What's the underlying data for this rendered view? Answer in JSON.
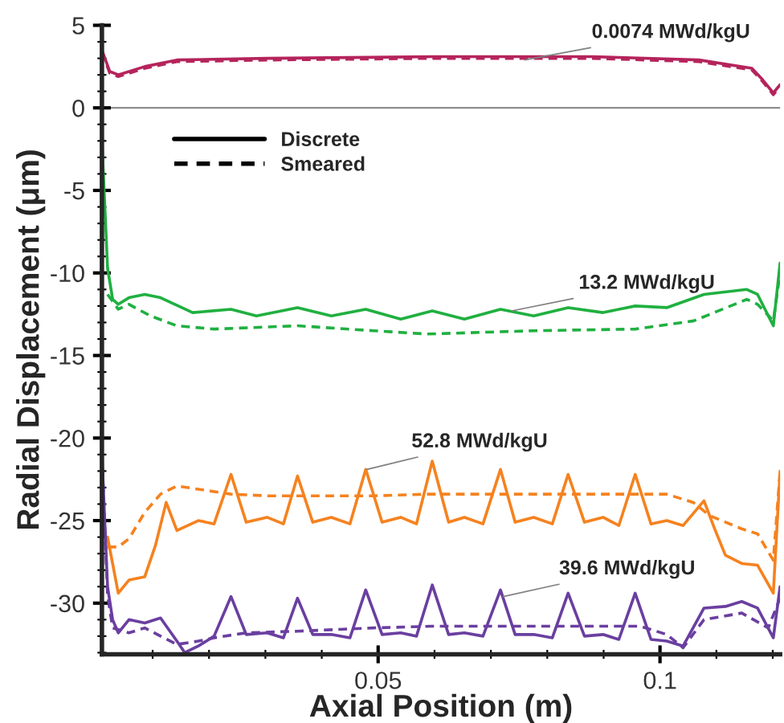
{
  "chart_data": {
    "type": "line",
    "xlabel": "Axial Position (m)",
    "ylabel": "Radial Displacement (μm)",
    "xlim": [
      0.001,
      0.1213
    ],
    "ylim": [
      -33.1,
      5
    ],
    "xticks": [
      {
        "value": 0.01,
        "label": null
      },
      {
        "value": 0.02,
        "label": null
      },
      {
        "value": 0.03,
        "label": null
      },
      {
        "value": 0.04,
        "label": null
      },
      {
        "value": 0.05,
        "label": "0.05"
      },
      {
        "value": 0.06,
        "label": null
      },
      {
        "value": 0.07,
        "label": null
      },
      {
        "value": 0.08,
        "label": null
      },
      {
        "value": 0.09,
        "label": null
      },
      {
        "value": 0.1,
        "label": "0.1"
      },
      {
        "value": 0.11,
        "label": null
      },
      {
        "value": 0.12,
        "label": null
      }
    ],
    "yticks": [
      {
        "value": -33,
        "label": null
      },
      {
        "value": -32,
        "label": null
      },
      {
        "value": -31,
        "label": null
      },
      -30,
      {
        "value": -29,
        "label": null
      },
      {
        "value": -28,
        "label": null
      },
      {
        "value": -27,
        "label": null
      },
      {
        "value": -26,
        "label": null
      },
      -25,
      {
        "value": -24,
        "label": null
      },
      {
        "value": -23,
        "label": null
      },
      {
        "value": -22,
        "label": null
      },
      {
        "value": -21,
        "label": null
      },
      -20,
      {
        "value": -19,
        "label": null
      },
      {
        "value": -18,
        "label": null
      },
      {
        "value": -17,
        "label": null
      },
      {
        "value": -16,
        "label": null
      },
      -15,
      {
        "value": -14,
        "label": null
      },
      {
        "value": -13,
        "label": null
      },
      {
        "value": -12,
        "label": null
      },
      {
        "value": -11,
        "label": null
      },
      -10,
      {
        "value": -9,
        "label": null
      },
      {
        "value": -8,
        "label": null
      },
      {
        "value": -7,
        "label": null
      },
      {
        "value": -6,
        "label": null
      },
      -5,
      {
        "value": -4,
        "label": null
      },
      {
        "value": -3,
        "label": null
      },
      {
        "value": -2,
        "label": null
      },
      {
        "value": -1,
        "label": null
      },
      0,
      {
        "value": 1,
        "label": null
      },
      {
        "value": 2,
        "label": null
      },
      {
        "value": 3,
        "label": null
      },
      {
        "value": 4,
        "label": null
      },
      5
    ],
    "grid": false,
    "marker": "none",
    "ref_lines": [
      {
        "axis": "y",
        "value": 0,
        "color": "#808080",
        "line_style": "solid"
      }
    ],
    "annotations": [
      {
        "text": "0.0074 MWd/kgU",
        "x": 0.076,
        "y": 2.9
      },
      {
        "text": "13.2 MWd/kgU",
        "x": 0.0737,
        "y": -12.3
      },
      {
        "text": "52.8 MWd/kgU",
        "x": 0.048,
        "y": -21.9
      },
      {
        "text": "39.6 MWd/kgU",
        "x": 0.0722,
        "y": -29.6
      },
      "Discrete",
      "Smeared"
    ],
    "series": [
      {
        "line_style": "solid",
        "color": "#b5245c",
        "x": [
          0.001,
          0.0024,
          0.0039,
          0.0086,
          0.0143,
          0.0303,
          0.0596,
          0.088,
          0.1069,
          0.1163,
          0.1182,
          0.1201,
          0.1213
        ],
        "values": [
          3.5,
          2.2,
          2.0,
          2.5,
          2.9,
          3.0,
          3.1,
          3.1,
          2.9,
          2.4,
          1.7,
          0.9,
          1.4
        ]
      },
      {
        "line_style": "dashed",
        "color": "#b5245c",
        "x": [
          0.001,
          0.0024,
          0.0039,
          0.0086,
          0.0143,
          0.0303,
          0.0596,
          0.088,
          0.1069,
          0.1163,
          0.1182,
          0.1201,
          0.1213
        ],
        "values": [
          3.4,
          2.1,
          1.9,
          2.4,
          2.8,
          2.9,
          3.0,
          3.0,
          2.8,
          2.3,
          1.6,
          0.8,
          1.3
        ]
      },
      {
        "line_style": "solid",
        "color": "#20b040",
        "x": [
          0.001,
          0.002,
          0.0029,
          0.0039,
          0.0058,
          0.0086,
          0.0114,
          0.0171,
          0.0239,
          0.0284,
          0.0357,
          0.0417,
          0.0478,
          0.054,
          0.0596,
          0.0653,
          0.0717,
          0.0776,
          0.0837,
          0.0899,
          0.0956,
          0.1012,
          0.1078,
          0.1154,
          0.1173,
          0.1201,
          0.1213
        ],
        "values": [
          -2.0,
          -9.7,
          -11.6,
          -11.9,
          -11.5,
          -11.3,
          -11.5,
          -12.4,
          -12.2,
          -12.6,
          -12.1,
          -12.6,
          -12.2,
          -12.8,
          -12.3,
          -12.8,
          -12.2,
          -12.6,
          -12.1,
          -12.4,
          -12.0,
          -12.1,
          -11.3,
          -11.0,
          -11.3,
          -13.2,
          -9.4
        ]
      },
      {
        "line_style": "dashed",
        "color": "#20b040",
        "x": [
          0.002,
          0.0039,
          0.0058,
          0.0096,
          0.0143,
          0.0209,
          0.0357,
          0.0492,
          0.0587,
          0.0776,
          0.0956,
          0.106,
          0.1154,
          0.1173,
          0.1201,
          0.1213
        ],
        "values": [
          -11.3,
          -12.2,
          -11.9,
          -12.6,
          -13.2,
          -13.4,
          -13.2,
          -13.5,
          -13.7,
          -13.5,
          -13.4,
          -12.9,
          -11.6,
          -11.9,
          -12.9,
          -10.0
        ]
      },
      {
        "line_style": "solid",
        "color": "#f5821f",
        "x": [
          0.002,
          0.0039,
          0.0058,
          0.0086,
          0.0105,
          0.0124,
          0.0143,
          0.0181,
          0.0209,
          0.0239,
          0.0266,
          0.0303,
          0.0332,
          0.0357,
          0.0384,
          0.0417,
          0.045,
          0.0478,
          0.0507,
          0.054,
          0.0568,
          0.0596,
          0.0625,
          0.0653,
          0.0686,
          0.0717,
          0.0743,
          0.0776,
          0.0809,
          0.0837,
          0.0866,
          0.0899,
          0.0927,
          0.0956,
          0.0984,
          0.1012,
          0.1041,
          0.1078,
          0.1097,
          0.1116,
          0.1145,
          0.1173,
          0.1201,
          0.1213
        ],
        "values": [
          -26.0,
          -29.4,
          -28.6,
          -28.4,
          -26.5,
          -23.9,
          -25.6,
          -25.0,
          -25.2,
          -22.2,
          -25.1,
          -24.8,
          -25.2,
          -22.3,
          -25.1,
          -24.8,
          -25.2,
          -21.9,
          -25.1,
          -24.8,
          -25.2,
          -21.4,
          -25.1,
          -24.8,
          -25.2,
          -21.9,
          -25.1,
          -24.8,
          -25.2,
          -22.2,
          -25.1,
          -24.8,
          -25.3,
          -22.2,
          -25.2,
          -25.0,
          -25.3,
          -23.8,
          -25.5,
          -27.1,
          -27.6,
          -27.7,
          -29.4,
          -22.0
        ]
      },
      {
        "line_style": "dashed",
        "color": "#f5821f",
        "x": [
          0.002,
          0.0039,
          0.0058,
          0.0086,
          0.0114,
          0.0143,
          0.0181,
          0.0239,
          0.0303,
          0.0492,
          0.0587,
          0.0776,
          0.1012,
          0.1059,
          0.1088,
          0.1145,
          0.1173,
          0.1201,
          0.1213
        ],
        "values": [
          -26.6,
          -26.6,
          -26.1,
          -24.5,
          -23.4,
          -22.9,
          -23.1,
          -23.4,
          -23.5,
          -23.5,
          -23.4,
          -23.4,
          -23.4,
          -23.9,
          -24.7,
          -25.5,
          -25.8,
          -27.4,
          -22.0
        ]
      },
      {
        "line_style": "solid",
        "color": "#6a3fa0",
        "x": [
          0.001,
          0.002,
          0.0029,
          0.0039,
          0.0058,
          0.0086,
          0.0114,
          0.0143,
          0.0157,
          0.0181,
          0.0209,
          0.0239,
          0.0266,
          0.0303,
          0.0332,
          0.0357,
          0.0384,
          0.0417,
          0.045,
          0.0478,
          0.0507,
          0.054,
          0.0568,
          0.0596,
          0.0625,
          0.0653,
          0.0686,
          0.0717,
          0.0743,
          0.0776,
          0.0809,
          0.0837,
          0.0866,
          0.0899,
          0.0927,
          0.0956,
          0.0984,
          0.1012,
          0.1041,
          0.1078,
          0.1116,
          0.1145,
          0.1173,
          0.1201,
          0.1213
        ],
        "values": [
          -21.0,
          -29.0,
          -31.0,
          -31.8,
          -31.0,
          -31.2,
          -30.9,
          -32.3,
          -33.0,
          -32.6,
          -32.0,
          -29.6,
          -31.9,
          -31.8,
          -32.1,
          -29.7,
          -31.9,
          -31.9,
          -32.1,
          -29.2,
          -31.9,
          -31.8,
          -32.0,
          -28.9,
          -31.9,
          -31.8,
          -32.0,
          -29.2,
          -31.9,
          -31.9,
          -32.1,
          -29.4,
          -32.0,
          -31.9,
          -32.2,
          -29.4,
          -32.2,
          -32.3,
          -32.6,
          -30.3,
          -30.2,
          -29.9,
          -30.3,
          -32.1,
          -29.0
        ]
      },
      {
        "line_style": "dashed",
        "color": "#6a3fa0",
        "x": [
          0.001,
          0.002,
          0.0029,
          0.0058,
          0.0086,
          0.0114,
          0.0143,
          0.0181,
          0.0209,
          0.0266,
          0.0357,
          0.0492,
          0.0596,
          0.0776,
          0.0965,
          0.1012,
          0.1041,
          0.1078,
          0.1145,
          0.1192,
          0.1213
        ],
        "values": [
          -21.0,
          -29.5,
          -31.5,
          -31.8,
          -31.5,
          -32.0,
          -32.5,
          -32.3,
          -32.1,
          -31.8,
          -31.7,
          -31.5,
          -31.4,
          -31.4,
          -31.4,
          -31.9,
          -32.7,
          -31.0,
          -30.6,
          -31.5,
          -29.7
        ]
      }
    ]
  }
}
